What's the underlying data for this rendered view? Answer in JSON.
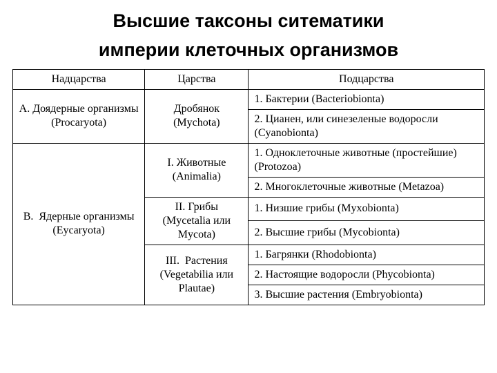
{
  "title": {
    "line1": "Высшие таксоны ситематики",
    "line2": "империи клеточных организмов",
    "fontsize": 27,
    "font_family": "Arial",
    "font_weight": 700,
    "color": "#000000"
  },
  "table": {
    "type": "table",
    "border_color": "#000000",
    "background_color": "#ffffff",
    "font_family": "Times New Roman",
    "header_fontsize": 16,
    "cell_fontsize": 16,
    "column_widths_pct": [
      28,
      22,
      50
    ],
    "columns": [
      "Надцарства",
      "Царства",
      "Подцарства"
    ],
    "rows": [
      {
        "superkingdom": "А. Доядерные организмы (Procaryota)",
        "kingdom": "Дробянок (Mychota)",
        "subkingdom": "1. Бактерии (Bacteriobionta)"
      },
      {
        "subkingdom": "2. Цианен, или синезеленые водоросли (Cyanobionta)"
      },
      {
        "superkingdom": "В.  Ядерные организмы (Eycaryota)",
        "kingdom": "I. Животные (Animalia)",
        "subkingdom": "1. Одноклеточные животные (простейшие) (Protozoa)"
      },
      {
        "subkingdom": "2. Многоклеточные животные (Metazoa)"
      },
      {
        "kingdom": "II. Грибы (Mycetalia или Mycota)",
        "subkingdom": "1. Низшие грибы (Myxobionta)"
      },
      {
        "subkingdom": "2. Высшие грибы (Mycobionta)"
      },
      {
        "kingdom": "III.  Растения (Vegetabilia или Plautae)",
        "subkingdom": "1. Багрянки (Rhodobionta)"
      },
      {
        "subkingdom": "2. Настоящие водоросли (Phycobionta)"
      },
      {
        "subkingdom": "3. Высшие растения (Embryobionta)"
      }
    ]
  }
}
